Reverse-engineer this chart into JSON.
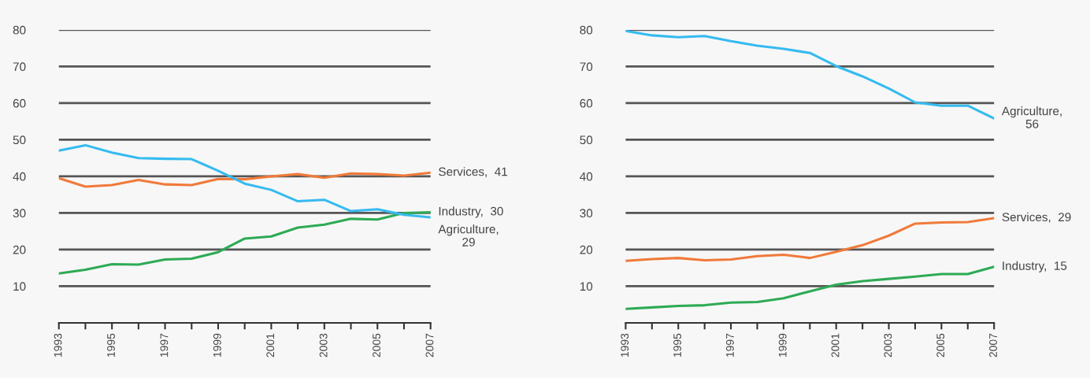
{
  "chart_data": [
    {
      "type": "line",
      "x": [
        1993,
        1994,
        1995,
        1996,
        1997,
        1998,
        1999,
        2000,
        2001,
        2002,
        2003,
        2004,
        2005,
        2006,
        2007
      ],
      "series": [
        {
          "color": "#f07a3a",
          "values": [
            39.5,
            37.2,
            37.6,
            39,
            37.8,
            37.6,
            39.3,
            39.2,
            40,
            40.6,
            39.6,
            40.8,
            40.6,
            40.2,
            41
          ]
        },
        {
          "color": "#2eaa55",
          "values": [
            13.5,
            14.5,
            16,
            15.9,
            17.3,
            17.5,
            19.3,
            23,
            23.6,
            26,
            26.8,
            28.4,
            28.2,
            30,
            30.2
          ]
        },
        {
          "color": "#35bbef",
          "values": [
            47,
            48.5,
            46.5,
            45,
            44.8,
            44.7,
            41.5,
            38,
            36.3,
            33.2,
            33.6,
            30.5,
            31,
            29.5,
            28.8
          ]
        }
      ],
      "annotations": [
        "Services,  41",
        "Industry,  30",
        "Agriculture,\n29"
      ],
      "xlim": [
        1993,
        2007
      ],
      "xticks": [
        1993,
        {
          "value": 1994,
          "label": null
        },
        1995,
        {
          "value": 1996,
          "label": null
        },
        1997,
        {
          "value": 1998,
          "label": null
        },
        1999,
        {
          "value": 2000,
          "label": null
        },
        2001,
        {
          "value": 2002,
          "label": null
        },
        2003,
        {
          "value": 2004,
          "label": null
        },
        2005,
        {
          "value": 2006,
          "label": null
        },
        2007
      ],
      "ylim": [
        0,
        80
      ],
      "yticks": [
        10,
        20,
        30,
        40,
        50,
        60,
        70,
        80
      ],
      "grid": "y"
    },
    {
      "type": "line",
      "x": [
        1993,
        1994,
        1995,
        1996,
        1997,
        1998,
        1999,
        2000,
        2001,
        2002,
        2003,
        2004,
        2005,
        2006,
        2007
      ],
      "series": [
        {
          "color": "#35bbef",
          "values": [
            79.7,
            78.5,
            78,
            78.3,
            76.9,
            75.7,
            74.8,
            73.7,
            70.1,
            67.3,
            64,
            60.2,
            59.3,
            59.3,
            55.8
          ]
        },
        {
          "color": "#f07a3a",
          "values": [
            16.9,
            17.4,
            17.7,
            17.1,
            17.3,
            18.2,
            18.6,
            17.7,
            19.4,
            21.2,
            23.8,
            27.1,
            27.4,
            27.5,
            28.6
          ]
        },
        {
          "color": "#2eaa55",
          "values": [
            3.8,
            4.2,
            4.6,
            4.8,
            5.5,
            5.7,
            6.7,
            8.6,
            10.4,
            11.4,
            12,
            12.6,
            13.3,
            13.3,
            15.3
          ]
        }
      ],
      "annotations": [
        "Agriculture,\n56",
        "Services,  29",
        "Industry,  15"
      ],
      "xlim": [
        1993,
        2007
      ],
      "xticks": [
        1993,
        {
          "value": 1994,
          "label": null
        },
        1995,
        {
          "value": 1996,
          "label": null
        },
        1997,
        {
          "value": 1998,
          "label": null
        },
        1999,
        {
          "value": 2000,
          "label": null
        },
        2001,
        {
          "value": 2002,
          "label": null
        },
        2003,
        {
          "value": 2004,
          "label": null
        },
        2005,
        {
          "value": 2006,
          "label": null
        },
        2007
      ],
      "ylim": [
        0,
        80
      ],
      "yticks": [
        10,
        20,
        30,
        40,
        50,
        60,
        70,
        80
      ],
      "grid": "y"
    }
  ]
}
